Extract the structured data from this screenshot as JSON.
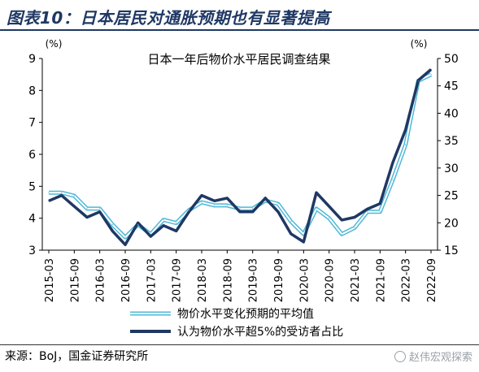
{
  "figure": {
    "title": "图表10：日本居民对通胀预期也有显著提高",
    "source": "来源：BoJ，国金证券研究所",
    "watermark": "赵伟宏观探索"
  },
  "colors": {
    "title": "#1f3864",
    "series_light": "#4fb8d6",
    "series_dark": "#1f3864"
  },
  "chart_data": {
    "type": "line",
    "title": "日本一年后物价水平居民调查结果",
    "left_axis": {
      "unit": "(%)",
      "range": [
        3,
        9
      ],
      "ticks": [
        "3",
        "4",
        "5",
        "6",
        "7",
        "8",
        "9"
      ]
    },
    "right_axis": {
      "unit": "(%)",
      "range": [
        15,
        50
      ],
      "ticks": [
        "15",
        "20",
        "25",
        "30",
        "35",
        "40",
        "45",
        "50"
      ]
    },
    "x_tick_labels": [
      "2015-03",
      "2015-09",
      "2016-03",
      "2016-09",
      "2017-03",
      "2017-09",
      "2018-03",
      "2018-09",
      "2019-03",
      "2019-09",
      "2020-03",
      "2020-09",
      "2021-03",
      "2021-09",
      "2022-03",
      "2022-09"
    ],
    "grid": false,
    "legend_position": "bottom",
    "series": [
      {
        "name": "物价水平变化预期的平均值",
        "axis": "left",
        "style": "double-line",
        "values": [
          4.8,
          4.8,
          4.7,
          4.3,
          4.3,
          3.8,
          3.4,
          3.8,
          3.5,
          3.95,
          3.85,
          4.25,
          4.5,
          4.4,
          4.4,
          4.3,
          4.3,
          4.55,
          4.45,
          3.9,
          3.5,
          4.3,
          4.0,
          3.5,
          3.7,
          4.2,
          4.2,
          5.2,
          6.3,
          8.3,
          8.5
        ]
      },
      {
        "name": "认为物价水平超5%的受访者占比",
        "axis": "right",
        "style": "thick-line",
        "values": [
          24,
          25,
          23,
          21,
          22,
          18.5,
          16,
          20,
          17.5,
          19.5,
          18.5,
          22,
          25,
          24,
          24.5,
          22,
          22,
          24.5,
          22,
          18,
          16.5,
          25.5,
          23,
          20.5,
          21,
          22.5,
          23.5,
          31,
          37,
          46,
          48
        ]
      }
    ]
  }
}
